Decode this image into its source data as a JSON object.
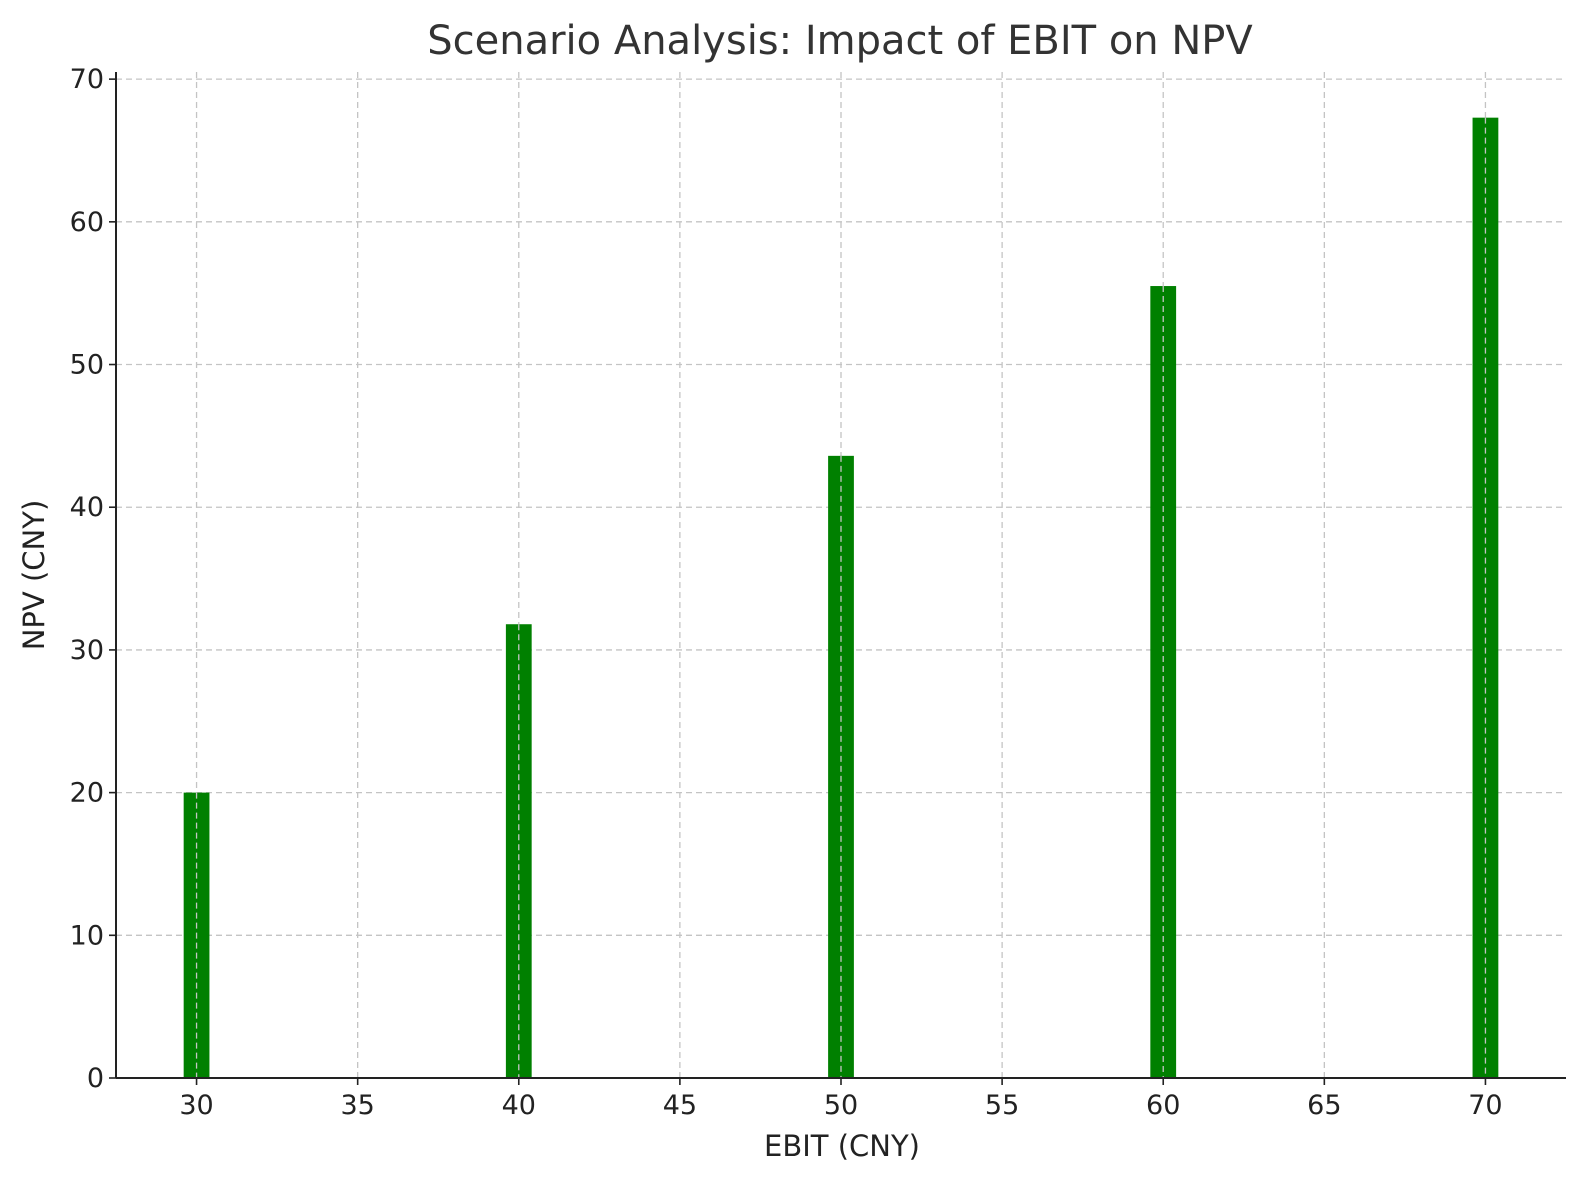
{
  "chart_data": {
    "type": "bar",
    "title": "Scenario Analysis: Impact of EBIT on NPV",
    "xlabel": "EBIT (CNY)",
    "ylabel": "NPV (CNY)",
    "x": [
      30,
      40,
      50,
      60,
      70
    ],
    "values": [
      20.0,
      31.8,
      43.6,
      55.5,
      67.3
    ],
    "xlim": [
      27.5,
      72.5
    ],
    "ylim": [
      0,
      70.5
    ],
    "xticks": [
      30,
      35,
      40,
      45,
      50,
      55,
      60,
      65,
      70
    ],
    "yticks": [
      0,
      10,
      20,
      30,
      40,
      50,
      60,
      70
    ],
    "bar_width": 0.8,
    "grid": true,
    "colors": {
      "bar": "#008000"
    }
  }
}
